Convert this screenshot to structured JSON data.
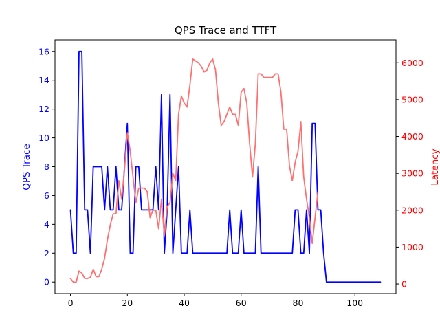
{
  "chart_data": {
    "type": "line",
    "title": "QPS Trace and TTFT",
    "xlabel": "",
    "y_left_label": "QPS Trace",
    "y_right_label": "Latency",
    "xlim": [
      -5.45,
      114.45
    ],
    "y_left_lim": [
      -0.8,
      16.8
    ],
    "y_right_lim": [
      -260,
      6620
    ],
    "x_ticks": [
      0,
      20,
      40,
      60,
      80,
      100
    ],
    "y_left_ticks": [
      0,
      2,
      4,
      6,
      8,
      10,
      12,
      14,
      16
    ],
    "y_right_ticks": [
      0,
      1000,
      2000,
      3000,
      4000,
      5000,
      6000
    ],
    "grid": false,
    "colors": {
      "qps": "#0000ff",
      "latency": "#ff7070",
      "left_ticks": "#0000ff",
      "right_ticks": "#ff0000"
    },
    "series": [
      {
        "name": "QPS Trace",
        "axis": "left",
        "x": [
          0,
          1,
          2,
          3,
          4,
          5,
          6,
          7,
          8,
          9,
          10,
          11,
          12,
          13,
          14,
          15,
          16,
          17,
          18,
          19,
          20,
          21,
          22,
          23,
          24,
          25,
          26,
          27,
          28,
          29,
          30,
          31,
          32,
          33,
          34,
          35,
          36,
          37,
          38,
          39,
          40,
          41,
          42,
          43,
          44,
          45,
          46,
          47,
          48,
          49,
          50,
          51,
          52,
          53,
          54,
          55,
          56,
          57,
          58,
          59,
          60,
          61,
          62,
          63,
          64,
          65,
          66,
          67,
          68,
          69,
          70,
          71,
          72,
          73,
          74,
          75,
          76,
          77,
          78,
          79,
          80,
          81,
          82,
          83,
          84,
          85,
          86,
          87,
          88,
          89,
          90,
          91,
          92,
          93,
          94,
          95,
          96,
          97,
          98,
          99,
          100,
          101,
          102,
          103,
          104,
          105,
          106,
          107,
          108,
          109
        ],
        "values": [
          5,
          2,
          2,
          16,
          16,
          5,
          5,
          2,
          8,
          8,
          8,
          8,
          5,
          8,
          5,
          5,
          8,
          5,
          5,
          8,
          11,
          2,
          2,
          8,
          8,
          5,
          5,
          5,
          5,
          5,
          8,
          5,
          13,
          2,
          5,
          13,
          2,
          5,
          8,
          2,
          2,
          2,
          5,
          2,
          2,
          2,
          2,
          2,
          2,
          2,
          2,
          2,
          2,
          2,
          2,
          2,
          5,
          2,
          2,
          2,
          5,
          2,
          2,
          2,
          2,
          2,
          8,
          2,
          2,
          2,
          2,
          2,
          2,
          2,
          2,
          2,
          2,
          2,
          2,
          5,
          5,
          2,
          2,
          5,
          2,
          11,
          11,
          5,
          5,
          2,
          0,
          0,
          0,
          0,
          0,
          0,
          0,
          0,
          0,
          0,
          0,
          0,
          0,
          0,
          0,
          0,
          0,
          0,
          0,
          0
        ]
      },
      {
        "name": "Latency",
        "axis": "right",
        "x": [
          0,
          1,
          2,
          3,
          4,
          5,
          6,
          7,
          8,
          9,
          10,
          11,
          12,
          13,
          14,
          15,
          16,
          17,
          18,
          19,
          20,
          21,
          22,
          23,
          24,
          25,
          26,
          27,
          28,
          29,
          30,
          31,
          32,
          33,
          34,
          35,
          36,
          37,
          38,
          39,
          40,
          41,
          42,
          43,
          44,
          45,
          46,
          47,
          48,
          49,
          50,
          51,
          52,
          53,
          54,
          55,
          56,
          57,
          58,
          59,
          60,
          61,
          62,
          63,
          64,
          65,
          66,
          67,
          68,
          69,
          70,
          71,
          72,
          73,
          74,
          75,
          76,
          77,
          78,
          79,
          80,
          81,
          82,
          83,
          84,
          85,
          86,
          87
        ],
        "values": [
          150,
          50,
          50,
          350,
          300,
          150,
          150,
          180,
          400,
          200,
          200,
          400,
          700,
          1200,
          1600,
          1900,
          1900,
          2800,
          2300,
          3100,
          4100,
          3600,
          2900,
          2200,
          2600,
          2600,
          2600,
          2500,
          1800,
          2000,
          2000,
          1500,
          2300,
          1300,
          2100,
          2200,
          3000,
          2800,
          4600,
          5100,
          4900,
          4800,
          5400,
          6100,
          6050,
          6000,
          5900,
          5750,
          5800,
          6000,
          6100,
          5800,
          4900,
          4300,
          4400,
          4600,
          4800,
          4600,
          4600,
          4300,
          5200,
          5300,
          4900,
          3800,
          2900,
          3800,
          5700,
          5700,
          5600,
          5600,
          5600,
          5600,
          5700,
          5700,
          5200,
          4200,
          4200,
          3200,
          2800,
          3300,
          3600,
          4400,
          2900,
          2300,
          1800,
          1100,
          1800,
          2500
        ]
      }
    ]
  }
}
